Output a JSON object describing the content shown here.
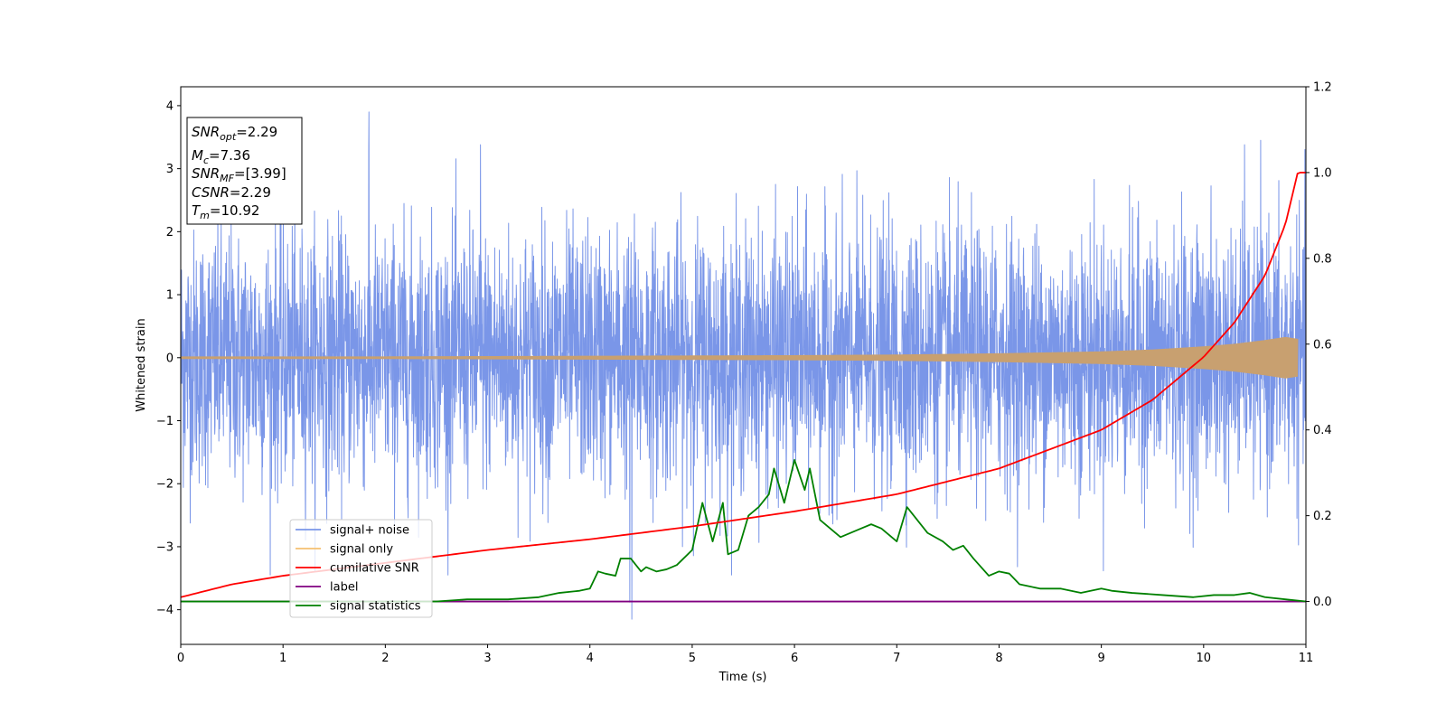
{
  "chart_data": {
    "type": "line",
    "title": "",
    "xlabel": "Time (s)",
    "ylabel": "Whitened strain",
    "y2label": "",
    "xlim": [
      0,
      11
    ],
    "ylim": [
      -4.55,
      4.3
    ],
    "y2lim": [
      -0.1,
      1.2
    ],
    "xticks": [
      0,
      1,
      2,
      3,
      4,
      5,
      6,
      7,
      8,
      9,
      10,
      11
    ],
    "yticks": [
      -4,
      -3,
      -2,
      -1,
      0,
      1,
      2,
      3,
      4
    ],
    "y2ticks": [
      0.0,
      0.2,
      0.4,
      0.6,
      0.8,
      1.0,
      1.2
    ],
    "grid": false,
    "legend_position": "lower-left",
    "annotation_box": [
      {
        "base": "SNR",
        "sub": "opt",
        "rest": "=2.29"
      },
      {
        "base": "M",
        "sub": "c",
        "rest": "=7.36"
      },
      {
        "base": "SNR",
        "sub": "MF",
        "rest": "=[3.99]"
      },
      {
        "base": "CSNR",
        "sub": "",
        "rest": "=2.29"
      },
      {
        "base": "T",
        "sub": "m",
        "rest": "=10.92"
      }
    ],
    "series": [
      {
        "name": "signal+ noise",
        "axis": "left",
        "color": "#7a96e8",
        "description_of_values": "Gaussian-like noise, std ~1.0, peaks ~±3.5",
        "noise_std": 1.0,
        "peaks": [
          [
            1.84,
            3.9
          ],
          [
            2.93,
            3.38
          ],
          [
            4.41,
            -4.15
          ],
          [
            10.4,
            3.38
          ],
          [
            4.39,
            -3.88
          ]
        ]
      },
      {
        "name": "signal only",
        "axis": "left",
        "color": "#f4c070",
        "x": [
          0,
          2,
          4,
          6,
          7,
          8,
          9,
          9.5,
          10,
          10.3,
          10.6,
          10.8,
          10.92
        ],
        "amplitude": [
          0.02,
          0.02,
          0.03,
          0.04,
          0.05,
          0.07,
          0.1,
          0.13,
          0.18,
          0.22,
          0.28,
          0.33,
          0.3
        ]
      },
      {
        "name": "cumilative SNR",
        "axis": "right",
        "color": "#ff0000",
        "x": [
          0,
          0.5,
          1,
          2,
          3,
          4,
          5,
          6,
          7,
          8,
          9,
          9.5,
          10,
          10.3,
          10.6,
          10.8,
          10.92,
          11
        ],
        "values": [
          0.01,
          0.04,
          0.06,
          0.09,
          0.12,
          0.145,
          0.175,
          0.21,
          0.25,
          0.31,
          0.4,
          0.47,
          0.57,
          0.65,
          0.76,
          0.88,
          1.0,
          1.0
        ]
      },
      {
        "name": "label",
        "axis": "right",
        "color": "#800080",
        "x": [
          0,
          11
        ],
        "values": [
          0,
          0
        ]
      },
      {
        "name": "signal statistics",
        "axis": "right",
        "color": "#008000",
        "x": [
          0,
          0.5,
          1,
          1.5,
          2,
          2.5,
          2.8,
          3.2,
          3.5,
          3.7,
          3.9,
          4.0,
          4.08,
          4.15,
          4.25,
          4.3,
          4.4,
          4.5,
          4.55,
          4.65,
          4.75,
          4.85,
          5.0,
          5.1,
          5.2,
          5.3,
          5.35,
          5.45,
          5.55,
          5.65,
          5.75,
          5.8,
          5.9,
          6.0,
          6.1,
          6.15,
          6.25,
          6.35,
          6.45,
          6.55,
          6.65,
          6.75,
          6.85,
          7.0,
          7.1,
          7.2,
          7.3,
          7.45,
          7.55,
          7.65,
          7.75,
          7.9,
          8.0,
          8.1,
          8.2,
          8.3,
          8.4,
          8.6,
          8.8,
          9.0,
          9.1,
          9.3,
          9.6,
          9.9,
          10.1,
          10.3,
          10.45,
          10.6,
          10.8,
          11.0
        ],
        "values": [
          0.0,
          0.0,
          0.0,
          0.0,
          0.0,
          0.0,
          0.005,
          0.005,
          0.01,
          0.02,
          0.025,
          0.03,
          0.07,
          0.065,
          0.06,
          0.1,
          0.1,
          0.07,
          0.08,
          0.07,
          0.075,
          0.085,
          0.12,
          0.23,
          0.14,
          0.23,
          0.11,
          0.12,
          0.2,
          0.22,
          0.25,
          0.31,
          0.23,
          0.33,
          0.26,
          0.31,
          0.19,
          0.17,
          0.15,
          0.16,
          0.17,
          0.18,
          0.17,
          0.14,
          0.22,
          0.19,
          0.16,
          0.14,
          0.12,
          0.13,
          0.1,
          0.06,
          0.07,
          0.065,
          0.04,
          0.035,
          0.03,
          0.03,
          0.02,
          0.03,
          0.025,
          0.02,
          0.015,
          0.01,
          0.015,
          0.015,
          0.02,
          0.01,
          0.005,
          0.0
        ]
      }
    ]
  }
}
